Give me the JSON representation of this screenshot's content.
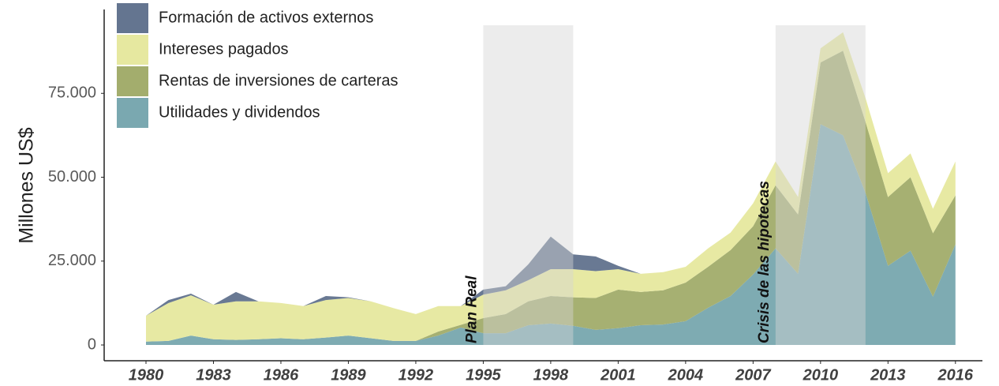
{
  "chart_data": {
    "type": "area",
    "stacked": true,
    "ylabel": "Millones US$",
    "x": [
      1980,
      1981,
      1982,
      1983,
      1984,
      1985,
      1986,
      1987,
      1988,
      1989,
      1990,
      1991,
      1992,
      1993,
      1994,
      1995,
      1996,
      1997,
      1998,
      1999,
      2000,
      2001,
      2002,
      2003,
      2004,
      2005,
      2006,
      2007,
      2008,
      2009,
      2010,
      2011,
      2012,
      2013,
      2014,
      2015,
      2016
    ],
    "series": [
      {
        "name": "Utilidades y dividendos",
        "color": "#7aa8b0",
        "values": [
          1000,
          1200,
          2800,
          1700,
          1500,
          1700,
          2000,
          1700,
          2200,
          2800,
          2000,
          1200,
          1200,
          2800,
          5200,
          3500,
          3500,
          5900,
          6400,
          5700,
          4500,
          5000,
          5900,
          6100,
          7100,
          11100,
          14600,
          21000,
          28800,
          21200,
          65800,
          62500,
          45300,
          23600,
          28100,
          14400,
          30000
        ]
      },
      {
        "name": "Rentas de inversiones de carteras",
        "color": "#a3ad6d",
        "values": [
          0,
          0,
          0,
          0,
          0,
          0,
          0,
          0,
          0,
          0,
          0,
          0,
          0,
          1200,
          800,
          4500,
          5700,
          7100,
          8200,
          8500,
          9500,
          11500,
          9900,
          10200,
          11500,
          12200,
          13700,
          14400,
          18800,
          17700,
          18400,
          25200,
          21200,
          20500,
          21900,
          18900,
          14600
        ]
      },
      {
        "name": "Intereses pagados",
        "color": "#e6e8a0",
        "values": [
          7700,
          11300,
          12000,
          10300,
          11500,
          11300,
          10500,
          9900,
          11200,
          11200,
          11000,
          9800,
          8000,
          7600,
          5600,
          7000,
          7100,
          6300,
          8000,
          8400,
          8000,
          6100,
          5400,
          5400,
          4700,
          5500,
          5200,
          6800,
          7100,
          5200,
          4200,
          5500,
          7100,
          7100,
          7100,
          7300,
          10100
        ]
      },
      {
        "name": "Formación de activos externos",
        "color": "#647590",
        "values": [
          0,
          900,
          500,
          0,
          2800,
          0,
          0,
          0,
          1200,
          200,
          0,
          0,
          0,
          0,
          0,
          1500,
          1200,
          4700,
          9700,
          4400,
          4400,
          1000,
          0,
          0,
          0,
          0,
          0,
          0,
          0,
          0,
          0,
          0,
          0,
          0,
          0,
          0,
          0
        ]
      }
    ],
    "xlim": [
      1978.14,
      2017.2
    ],
    "xticks": [
      1980,
      1983,
      1986,
      1989,
      1992,
      1995,
      1998,
      2001,
      2004,
      2007,
      2010,
      2013,
      2016
    ],
    "ylim": [
      -4700,
      100000
    ],
    "yticks": [
      0,
      {
        "value": 25000,
        "label": "25.000"
      },
      {
        "value": 50000,
        "label": "50.000"
      },
      {
        "value": 75000,
        "label": "75.000"
      }
    ],
    "legend": "upper left",
    "shaded_periods": [
      {
        "start": 1995,
        "end": 1999,
        "label": "Plan Real"
      },
      {
        "start": 2008,
        "end": 2012,
        "label": "Crisis de las hipotecas"
      }
    ]
  }
}
